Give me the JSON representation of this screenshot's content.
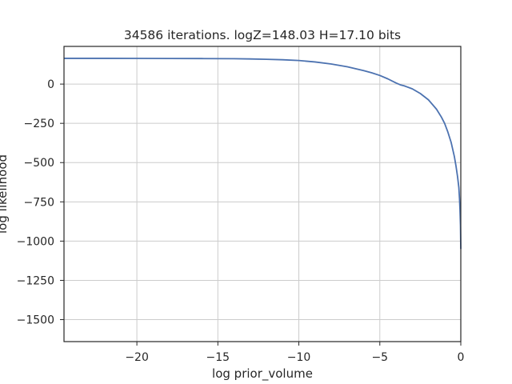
{
  "chart_data": {
    "type": "line",
    "title": "34586 iterations. logZ=148.03 H=17.10 bits",
    "xlabel": "log prior_volume",
    "ylabel": "log likelihood",
    "xlim": [
      -24.5,
      0
    ],
    "ylim": [
      -1640,
      240
    ],
    "xticks": [
      -20,
      -15,
      -10,
      -5,
      0
    ],
    "xtick_labels": [
      "−20",
      "−15",
      "−10",
      "−5",
      "0"
    ],
    "yticks": [
      0,
      -250,
      -500,
      -750,
      -1000,
      -1250,
      -1500
    ],
    "ytick_labels": [
      "0",
      "−250",
      "−500",
      "−750",
      "−1000",
      "−1250",
      "−1500"
    ],
    "grid": true,
    "line_color": "#4c72b0",
    "series": [
      {
        "x": [
          -24.5,
          -22,
          -20,
          -18,
          -16,
          -14,
          -13,
          -12,
          -11,
          -10,
          -9,
          -8,
          -7,
          -6,
          -5.5,
          -5,
          -4.5,
          -4,
          -3.7,
          -3.5,
          -3,
          -2.5,
          -2,
          -1.5,
          -1.2,
          -1,
          -0.8,
          -0.6,
          -0.4,
          -0.3,
          -0.2,
          -0.12,
          -0.08,
          -0.05,
          -0.02,
          0
        ],
        "y": [
          164,
          164,
          163.5,
          163,
          162.5,
          161.5,
          160,
          158,
          155,
          150,
          141,
          128,
          110,
          86,
          72,
          55,
          33,
          7,
          -6,
          -11,
          -30,
          -60,
          -100,
          -160,
          -210,
          -250,
          -305,
          -370,
          -460,
          -520,
          -590,
          -660,
          -730,
          -800,
          -900,
          -1050
        ]
      }
    ]
  }
}
